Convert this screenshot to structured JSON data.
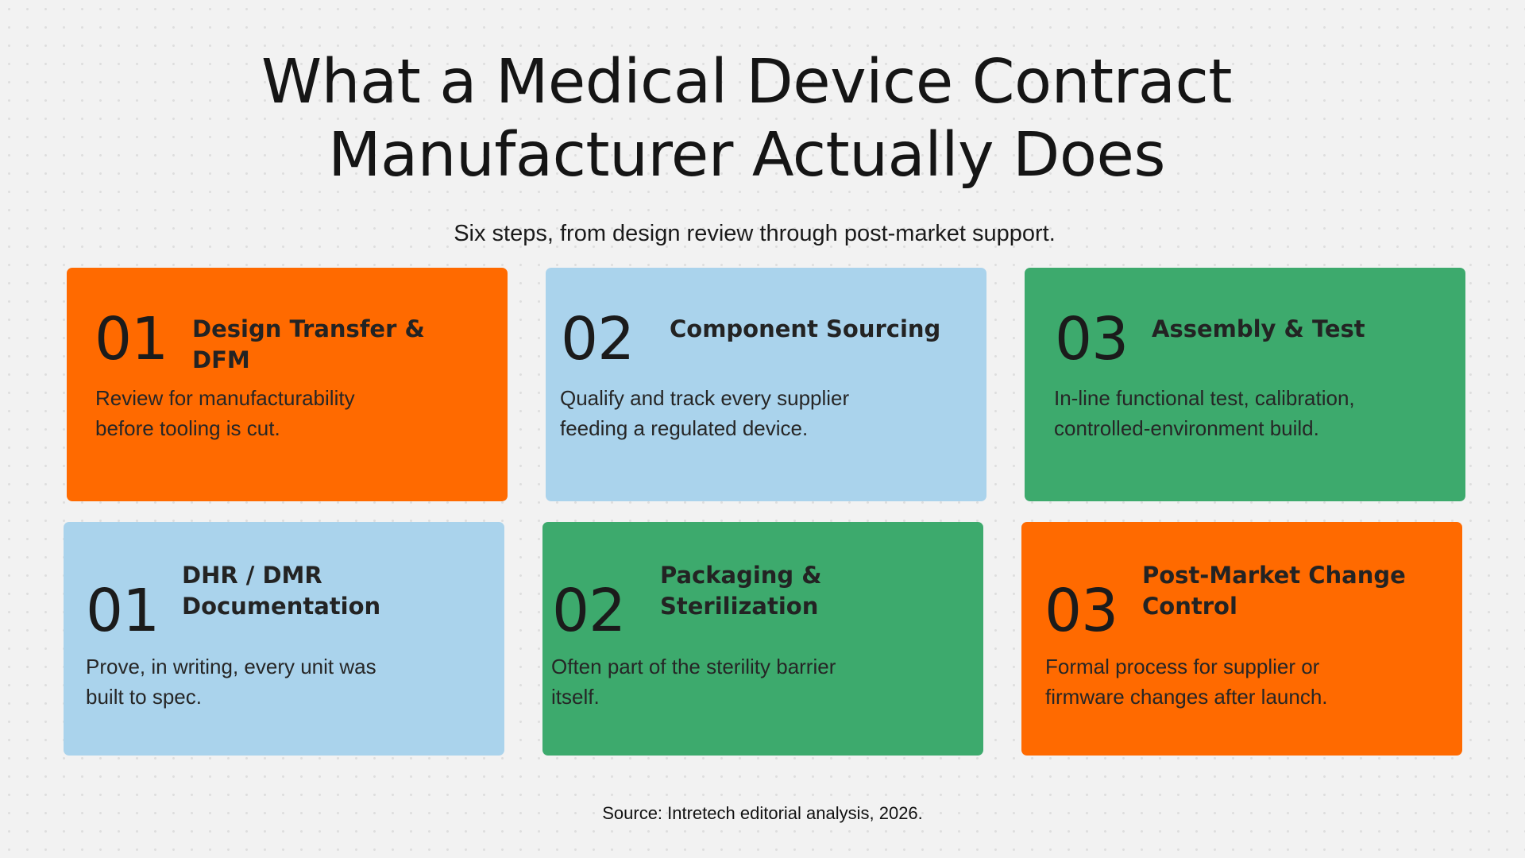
{
  "title": "What a Medical Device Contract Manufacturer Actually Does",
  "subtitle": "Six steps, from design review through post-market support.",
  "source": "Source: Intretech editorial analysis, 2026.",
  "colors": {
    "background": "#f2f2f2",
    "orange": "#ff6a00",
    "blue": "#aad3ec",
    "green": "#3daa6d",
    "text": "#1a1a1a"
  },
  "cards": [
    {
      "number": "01",
      "title": "Design Transfer & DFM",
      "description": "Review for manufacturability before tooling is cut.",
      "color": "orange"
    },
    {
      "number": "02",
      "title": "Component Sourcing",
      "description": "Qualify and track every supplier feeding a regulated device.",
      "color": "blue"
    },
    {
      "number": "03",
      "title": "Assembly & Test",
      "description": "In-line functional test, calibration, controlled-environment build.",
      "color": "green"
    },
    {
      "number": "01",
      "title": "DHR / DMR Documentation",
      "description": "Prove, in writing, every unit was built to spec.",
      "color": "blue"
    },
    {
      "number": "02",
      "title": "Packaging & Sterilization",
      "description": "Often part of the sterility barrier itself.",
      "color": "green"
    },
    {
      "number": "03",
      "title": "Post-Market Change Control",
      "description": "Formal process for supplier or firmware changes after launch.",
      "color": "orange"
    }
  ]
}
